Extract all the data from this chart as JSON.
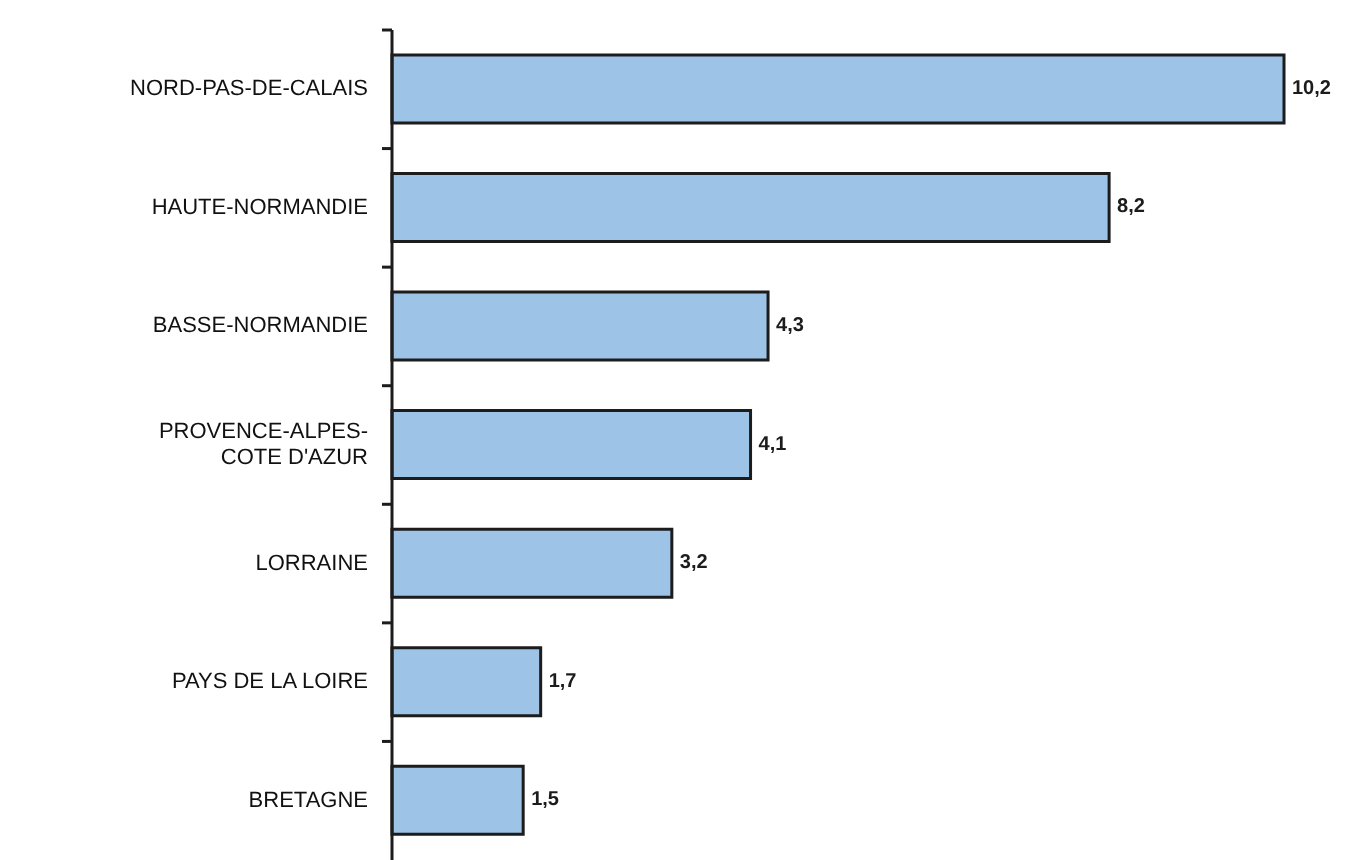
{
  "chart_data": {
    "type": "bar",
    "orientation": "horizontal",
    "categories": [
      "NORD-PAS-DE-CALAIS",
      "HAUTE-NORMANDIE",
      "BASSE-NORMANDIE",
      "PROVENCE-ALPES-COTE D'AZUR",
      "LORRAINE",
      "PAYS DE LA LOIRE",
      "BRETAGNE"
    ],
    "values": [
      10.2,
      8.2,
      4.3,
      4.1,
      3.2,
      1.7,
      1.5
    ],
    "value_labels": [
      "10,2",
      "8,2",
      "4,3",
      "4,1",
      "3,2",
      "1,7",
      "1,5"
    ],
    "color": "#9dc3e6"
  }
}
